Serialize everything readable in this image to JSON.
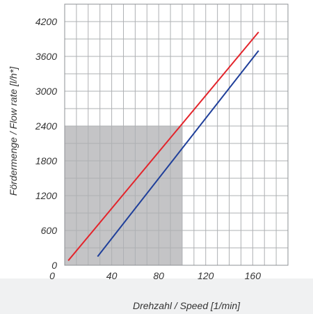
{
  "chart_data": {
    "type": "line",
    "xlabel": "Drehzahl / Speed [1/min]",
    "ylabel": "Fördermenge / Flow rate [l/h*]",
    "xlim": [
      0,
      190
    ],
    "ylim": [
      0,
      4500
    ],
    "x_ticks": [
      0,
      40,
      80,
      120,
      160
    ],
    "x_tick_labels": [
      "0",
      "40",
      "80",
      "120",
      "160"
    ],
    "y_ticks": [
      0,
      600,
      1200,
      1800,
      2400,
      3000,
      3600,
      4200
    ],
    "y_tick_labels": [
      "0",
      "600",
      "1200",
      "1800",
      "2400",
      "3000",
      "3600",
      "4200"
    ],
    "grid": true,
    "shaded_region": {
      "x": [
        0,
        100
      ],
      "y": [
        0,
        2400
      ],
      "color": "#c4c4c6"
    },
    "series": [
      {
        "color": "#e3242b",
        "x": [
          3,
          165
        ],
        "y": [
          80,
          4020
        ]
      },
      {
        "color": "#1f3f9a",
        "x": [
          28,
          165
        ],
        "y": [
          150,
          3700
        ]
      }
    ],
    "footer_background": "#f0f1f2"
  }
}
